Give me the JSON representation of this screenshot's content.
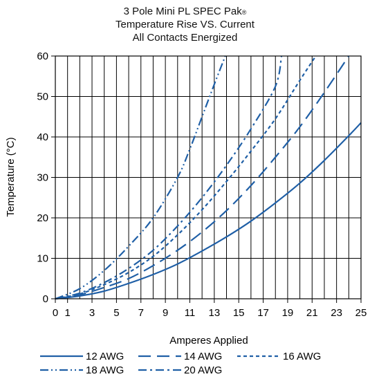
{
  "chart_data": {
    "type": "line",
    "title_lines": [
      "3 Pole Mini PL SPEC Pak",
      "Temperature Rise VS. Current",
      "All Contacts Energized"
    ],
    "title_mark": "®",
    "xlabel": "Amperes Applied",
    "ylabel": "Temperature (°C)",
    "xlim": [
      0,
      25
    ],
    "ylim": [
      0,
      60
    ],
    "x_tick_labels": [
      "0",
      "1",
      "3",
      "5",
      "7",
      "9",
      "11",
      "13",
      "15",
      "17",
      "19",
      "21",
      "23",
      "25"
    ],
    "y_tick_labels": [
      "0",
      "10",
      "20",
      "30",
      "40",
      "50",
      "60"
    ],
    "grid": true,
    "legend_position": "bottom",
    "line_color": "#1f5fa6",
    "series": [
      {
        "name": "12 AWG",
        "dash": "solid",
        "x": [
          0,
          2,
          4,
          6,
          8,
          10,
          12,
          14,
          16,
          18,
          20,
          22,
          24,
          25
        ],
        "y": [
          0,
          0.7,
          1.9,
          3.8,
          6.0,
          8.6,
          11.8,
          15.3,
          19.2,
          23.7,
          28.6,
          34.2,
          40.3,
          43.5
        ]
      },
      {
        "name": "14 AWG",
        "dash": "long-dash",
        "x": [
          0,
          2,
          4,
          6,
          8,
          10,
          12,
          14,
          16,
          18,
          20,
          22,
          24
        ],
        "y": [
          0,
          1.0,
          2.8,
          5.0,
          8.2,
          12.0,
          16.5,
          21.8,
          28.0,
          35.0,
          42.5,
          51.0,
          60.0
        ]
      },
      {
        "name": "16 AWG",
        "dash": "short-dash",
        "x": [
          0,
          2,
          4,
          6,
          8,
          10,
          12,
          14,
          16,
          18,
          20,
          21.3
        ],
        "y": [
          0,
          1.2,
          3.5,
          6.5,
          10.5,
          15.8,
          22.0,
          29.0,
          36.5,
          44.5,
          54.0,
          60.0
        ]
      },
      {
        "name": "18 AWG",
        "dash": "dash-dot-dot",
        "x": [
          0,
          2,
          4,
          6,
          8,
          10,
          11,
          12,
          13,
          13.9
        ],
        "y": [
          0,
          2.5,
          7.0,
          13.0,
          20.0,
          30.0,
          37.0,
          45.0,
          53.0,
          60.0
        ]
      },
      {
        "name": "20 AWG",
        "dash": "dash-dot",
        "x": [
          0,
          2,
          4,
          6,
          8,
          10,
          12,
          14,
          16,
          18,
          18.5
        ],
        "y": [
          0,
          1.4,
          4.0,
          7.5,
          12.0,
          18.0,
          25.0,
          33.0,
          42.0,
          52.5,
          60.0
        ]
      }
    ]
  }
}
